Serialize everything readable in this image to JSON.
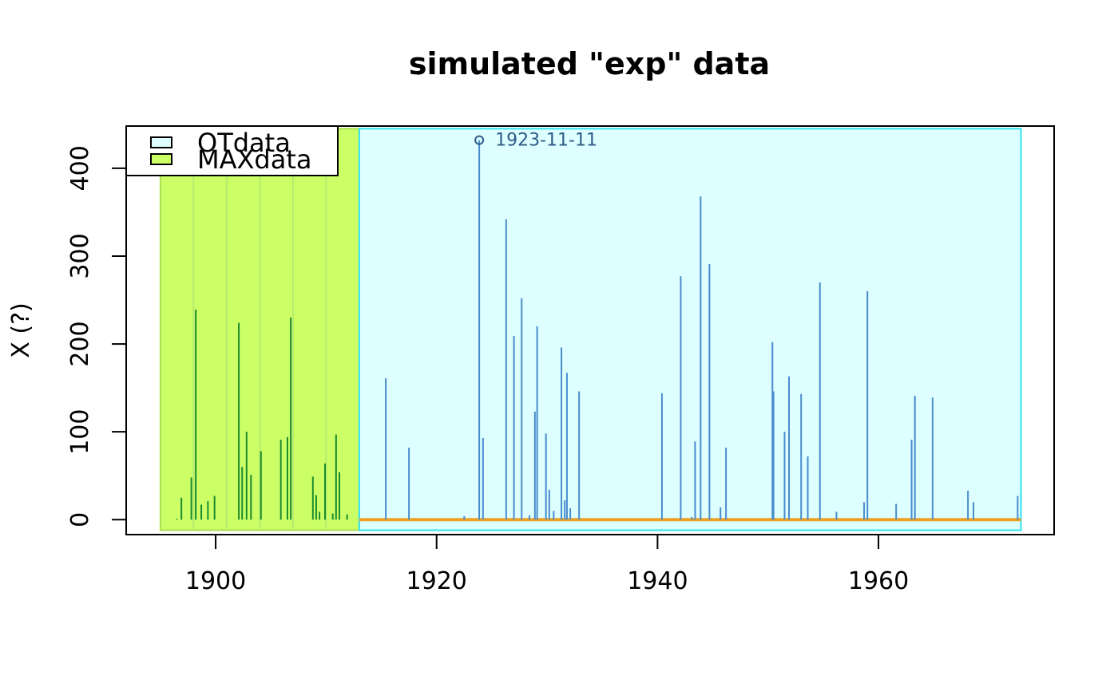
{
  "colors": {
    "background": "#ffffff",
    "maxdata_fill": "#ccff66",
    "maxdata_border": "#a6e050",
    "maxdata_grid": "#b5ea70",
    "maxdata_line": "#1a8a2e",
    "otdata_fill": "#ddffff",
    "otdata_border": "#33e0f0",
    "otdata_line": "#4a8ccc",
    "threshold": "#f0a020",
    "annotation": "#2e5a87",
    "axis": "#000000"
  },
  "chart_data": {
    "type": "bar",
    "title": "simulated \"exp\" data",
    "xlabel": "",
    "ylabel": "X (?)",
    "xlim": [
      1891.9,
      1975.9
    ],
    "ylim": [
      -17,
      448
    ],
    "x_ticks": [
      1900,
      1920,
      1940,
      1960
    ],
    "y_ticks": [
      0,
      100,
      200,
      300,
      400
    ],
    "grid": false,
    "legend": {
      "position": "top-left",
      "entries": [
        {
          "label": "OTdata",
          "fill": "#ddffff"
        },
        {
          "label": "MAXdata",
          "fill": "#ccff66"
        }
      ]
    },
    "threshold": 0,
    "blocks": [
      {
        "name": "MAXdata",
        "start": 1895.0,
        "end": 1913.0,
        "ymin": -12,
        "ymax": 445,
        "year_dividers": [
          1898,
          1901,
          1904,
          1907,
          1910
        ]
      },
      {
        "name": "OTdata",
        "start": 1913.0,
        "end": 1972.9,
        "ymin": -12,
        "ymax": 445
      }
    ],
    "series": [
      {
        "name": "MAXdata",
        "x": [
          1896.5,
          1896.9,
          1897.8,
          1898.2,
          1898.7,
          1899.3,
          1899.9,
          1902.1,
          1902.4,
          1902.8,
          1903.2,
          1904.1,
          1905.9,
          1906.5,
          1906.8,
          1908.8,
          1909.1,
          1909.4,
          1909.9,
          1910.6,
          1910.9,
          1911.2,
          1911.9
        ],
        "values": [
          1,
          25,
          48,
          239,
          17,
          21,
          27,
          224,
          60,
          100,
          51,
          78,
          91,
          94,
          230,
          49,
          28,
          9,
          64,
          7,
          97,
          54,
          6
        ]
      },
      {
        "name": "OTdata",
        "x": [
          1915.4,
          1917.5,
          1922.5,
          1923.86,
          1924.2,
          1926.3,
          1927.0,
          1927.7,
          1928.4,
          1928.9,
          1929.1,
          1929.9,
          1930.2,
          1930.6,
          1931.3,
          1931.6,
          1931.8,
          1932.1,
          1932.9,
          1940.4,
          1942.1,
          1943.1,
          1943.4,
          1943.9,
          1944.7,
          1945.7,
          1946.2,
          1950.4,
          1950.5,
          1951.5,
          1951.9,
          1953.0,
          1953.6,
          1954.7,
          1956.2,
          1958.7,
          1959.0,
          1961.6,
          1963.0,
          1963.3,
          1964.9,
          1968.1,
          1968.6,
          1972.6
        ],
        "values": [
          161,
          82,
          4,
          432,
          93,
          342,
          209,
          252,
          5,
          123,
          220,
          98,
          34,
          10,
          196,
          22,
          167,
          13,
          146,
          144,
          277,
          3,
          89,
          368,
          291,
          14,
          82,
          202,
          146,
          100,
          163,
          143,
          72,
          270,
          9,
          20,
          260,
          18,
          91,
          141,
          139,
          33,
          20,
          27
        ]
      }
    ],
    "annotations": [
      {
        "x": 1923.86,
        "y": 432,
        "marker": "circle",
        "label": "1923-11-11"
      }
    ]
  }
}
